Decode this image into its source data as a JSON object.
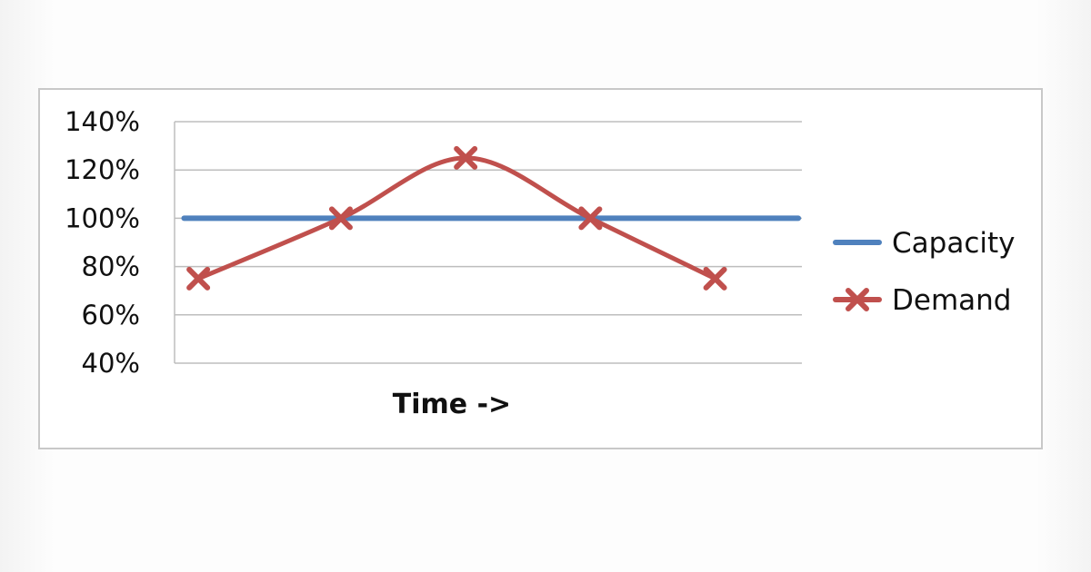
{
  "chart_data": {
    "type": "line",
    "title": "",
    "xlabel": "Time ->",
    "ylabel": "",
    "ylim": [
      0.4,
      1.4
    ],
    "yticks": [
      "140%",
      "120%",
      "100%",
      "80%",
      "60%",
      "40%"
    ],
    "ytick_values": [
      1.4,
      1.2,
      1.0,
      0.8,
      0.6,
      0.4
    ],
    "grid": true,
    "legend": "right",
    "series": [
      {
        "name": "Capacity",
        "color": "#4f81bd",
        "marker": "none",
        "points": [
          [
            0.08,
            1.0
          ],
          [
            5.25,
            1.0
          ]
        ]
      },
      {
        "name": "Demand",
        "color": "#c0504d",
        "marker": "x",
        "smooth": true,
        "points": [
          [
            0.2,
            0.75
          ],
          [
            1.4,
            1.0
          ],
          [
            2.45,
            1.25
          ],
          [
            3.5,
            1.0
          ],
          [
            4.55,
            0.75
          ]
        ]
      }
    ]
  }
}
